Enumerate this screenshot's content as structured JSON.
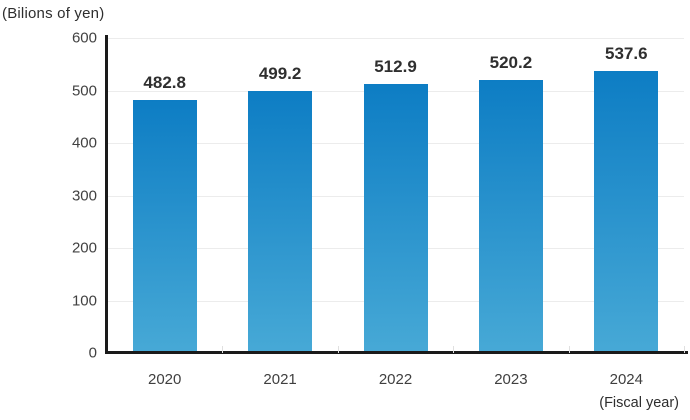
{
  "chart_data": {
    "type": "bar",
    "title": "(Bilions of yen)",
    "unit_label": "(Bilions of yen)",
    "categories": [
      "2020",
      "2021",
      "2022",
      "2023",
      "2024"
    ],
    "values": [
      482.8,
      499.2,
      512.9,
      520.2,
      537.6
    ],
    "value_labels": [
      "482.8",
      "499.2",
      "512.9",
      "520.2",
      "537.6"
    ],
    "xlabel": "(Fiscal year)",
    "ylabel": "(Bilions of yen)",
    "ylim": [
      0,
      600
    ],
    "yticks": [
      0,
      100,
      200,
      300,
      400,
      500,
      600
    ],
    "grid": true,
    "legend": false,
    "colors": {
      "bar_gradient_top": "#0d7dc4",
      "bar_gradient_bottom": "#47a9d6",
      "axis": "#1a1a1a",
      "gridline": "#ececec",
      "tick_text": "#414141",
      "value_text": "#2f2f2f"
    }
  }
}
